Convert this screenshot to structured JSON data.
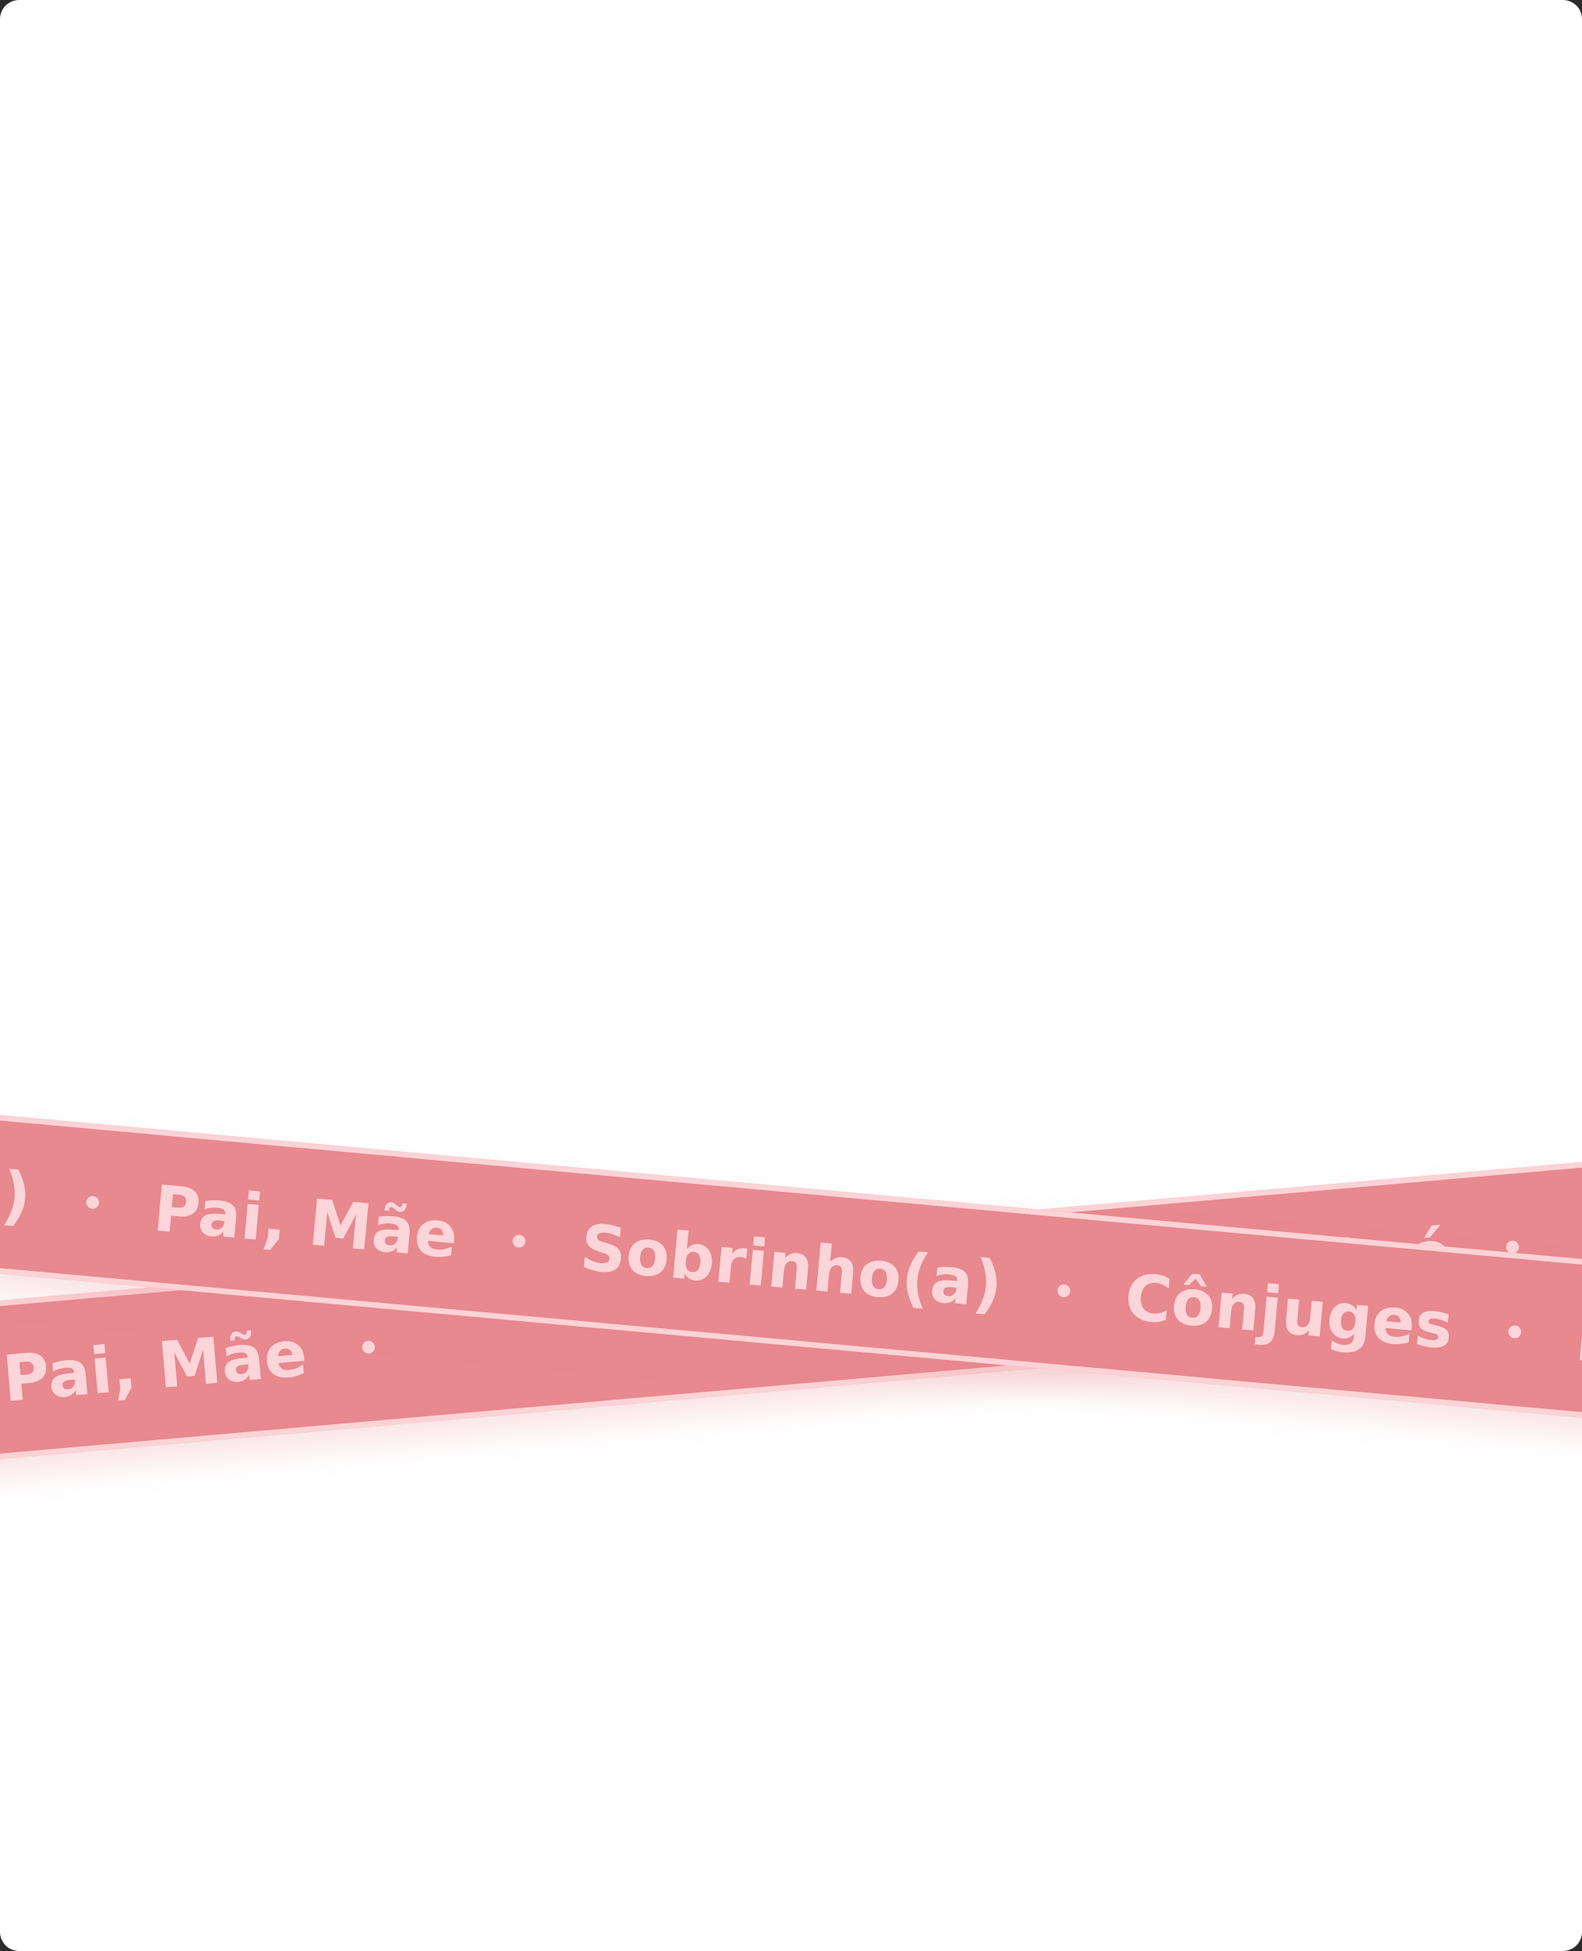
{
  "ribbons": {
    "back": {
      "words": [
        "Pai, Mãe",
        "Avô, Avó"
      ]
    },
    "front": {
      "words": [
        "(as)",
        "Pai, Mãe",
        "Sobrinho(a)",
        "Cônjuges",
        "En"
      ]
    }
  },
  "colors": {
    "background": "#ffffff",
    "ribbon": "#e8888f",
    "ribbon_text": "#fbd5d8",
    "ribbon_edge": "#fbd3d6"
  }
}
